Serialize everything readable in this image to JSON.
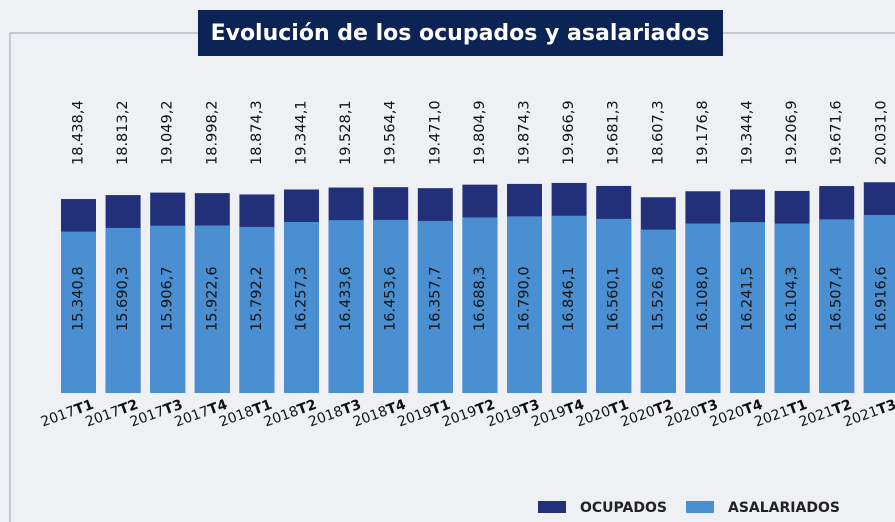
{
  "chart_data": {
    "type": "overlap_bar",
    "title": "Evolución de los ocupados y asalariados",
    "categories": [
      "2017T1",
      "2017T2",
      "2017T3",
      "2017T4",
      "2018T1",
      "2018T2",
      "2018T3",
      "2018T4",
      "2019T1",
      "2019T2",
      "2019T3",
      "2019T4",
      "2020T1",
      "2020T2",
      "2020T3",
      "2020T4",
      "2021T1",
      "2021T2",
      "2021T3"
    ],
    "ylim": [
      0,
      20000
    ],
    "legend": "bottom-right",
    "series": [
      {
        "name": "OCUPADOS",
        "color": "#22307a",
        "values": [
          18438.4,
          18813.2,
          19049.2,
          18998.2,
          18874.3,
          19344.1,
          19528.1,
          19564.4,
          19471.0,
          19804.9,
          19874.3,
          19966.9,
          19681.3,
          18607.3,
          19176.8,
          19344.4,
          19206.9,
          19671.6,
          20031.0
        ],
        "value_labels": [
          "18.438,4",
          "18.813,2",
          "19.049,2",
          "18.998,2",
          "18.874,3",
          "19.344,1",
          "19.528,1",
          "19.564,4",
          "19.471,0",
          "19.804,9",
          "19.874,3",
          "19.966,9",
          "19.681,3",
          "18.607,3",
          "19.176,8",
          "19.344,4",
          "19.206,9",
          "19.671,6",
          "20.031,0"
        ]
      },
      {
        "name": "ASALARIADOS",
        "color": "#4a8fd1",
        "values": [
          15340.8,
          15690.3,
          15906.7,
          15922.6,
          15792.2,
          16257.3,
          16433.6,
          16453.6,
          16357.7,
          16688.3,
          16790.0,
          16846.1,
          16560.1,
          15526.8,
          16108.0,
          16241.5,
          16104.3,
          16507.4,
          16916.6
        ],
        "value_labels": [
          "15.340,8",
          "15.690,3",
          "15.906,7",
          "15.922,6",
          "15.792,2",
          "16.257,3",
          "16.433,6",
          "16.453,6",
          "16.357,7",
          "16.688,3",
          "16.790,0",
          "16.846,1",
          "16.560,1",
          "15.526,8",
          "16.108,0",
          "16.241,5",
          "16.104,3",
          "16.507,4",
          "16.916,6"
        ]
      }
    ]
  }
}
